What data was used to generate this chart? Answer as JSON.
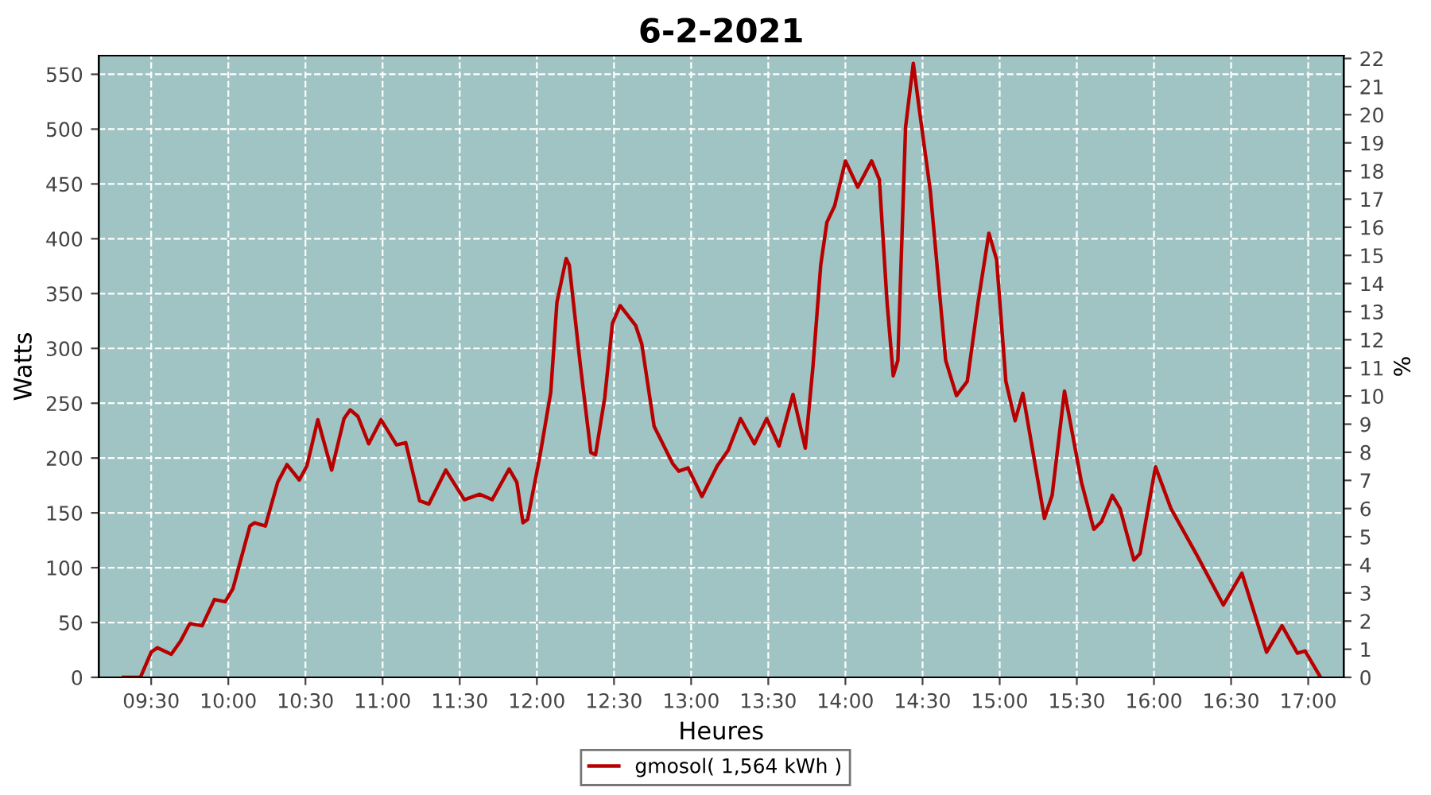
{
  "chart_data": {
    "type": "line",
    "title": "6-2-2021",
    "xlabel": "Heures",
    "ylabel": "Watts",
    "y2label": "%",
    "xlim": [
      9.16,
      17.23
    ],
    "xticks": [
      {
        "value": 9.5,
        "label": "09:30"
      },
      {
        "value": 10,
        "label": "10:00"
      },
      {
        "value": 10.5,
        "label": "10:30"
      },
      {
        "value": 11,
        "label": "11:00"
      },
      {
        "value": 11.5,
        "label": "11:30"
      },
      {
        "value": 12,
        "label": "12:00"
      },
      {
        "value": 12.5,
        "label": "12:30"
      },
      {
        "value": 13,
        "label": "13:00"
      },
      {
        "value": 13.5,
        "label": "13:30"
      },
      {
        "value": 14,
        "label": "14:00"
      },
      {
        "value": 14.5,
        "label": "14:30"
      },
      {
        "value": 15,
        "label": "15:00"
      },
      {
        "value": 15.5,
        "label": "15:30"
      },
      {
        "value": 16,
        "label": "16:00"
      },
      {
        "value": 16.5,
        "label": "16:30"
      },
      {
        "value": 17,
        "label": "17:00"
      }
    ],
    "ylim": [
      0,
      567
    ],
    "yticks": [
      0,
      50,
      100,
      150,
      200,
      250,
      300,
      350,
      400,
      450,
      500,
      550
    ],
    "y2lim": [
      0,
      22.1
    ],
    "y2ticks": [
      0,
      1,
      2,
      3,
      4,
      5,
      6,
      7,
      8,
      9,
      10,
      11,
      12,
      13,
      14,
      15,
      16,
      17,
      18,
      19,
      20,
      21,
      22
    ],
    "grid": true,
    "legend": "bottom",
    "marker": "none",
    "line_style": "solid",
    "series": [
      {
        "name": "gmosol( 1,564 kWh )",
        "color": "#b80000",
        "x": [
          9.32,
          9.43,
          9.5,
          9.54,
          9.63,
          9.69,
          9.75,
          9.83,
          9.91,
          9.98,
          10.03,
          10.14,
          10.17,
          10.24,
          10.32,
          10.38,
          10.46,
          10.51,
          10.58,
          10.67,
          10.75,
          10.79,
          10.84,
          10.91,
          10.99,
          11.09,
          11.15,
          11.24,
          11.3,
          11.41,
          11.53,
          11.63,
          11.71,
          11.82,
          11.87,
          11.91,
          11.94,
          12.02,
          12.09,
          12.13,
          12.19,
          12.21,
          12.28,
          12.35,
          12.38,
          12.44,
          12.49,
          12.54,
          12.64,
          12.68,
          12.76,
          12.88,
          12.92,
          12.98,
          13.07,
          13.17,
          13.24,
          13.32,
          13.41,
          13.49,
          13.57,
          13.66,
          13.74,
          13.79,
          13.84,
          13.88,
          13.93,
          14.0,
          14.08,
          14.17,
          14.22,
          14.27,
          14.31,
          14.34,
          14.39,
          14.44,
          14.48,
          14.55,
          14.65,
          14.72,
          14.79,
          14.86,
          14.93,
          14.98,
          15.04,
          15.1,
          15.15,
          15.22,
          15.29,
          15.34,
          15.42,
          15.53,
          15.61,
          15.66,
          15.73,
          15.78,
          15.87,
          15.91,
          16.01,
          16.11,
          16.28,
          16.45,
          16.57,
          16.73,
          16.83,
          16.93,
          16.98,
          17.08
        ],
        "values": [
          0,
          0,
          23,
          27,
          21,
          33,
          49,
          47,
          71,
          69,
          81,
          138,
          141,
          138,
          178,
          194,
          180,
          193,
          235,
          189,
          236,
          244,
          238,
          213,
          235,
          212,
          214,
          161,
          158,
          189,
          162,
          167,
          162,
          190,
          178,
          141,
          144,
          202,
          260,
          342,
          382,
          376,
          287,
          205,
          203,
          255,
          323,
          339,
          321,
          304,
          229,
          195,
          188,
          191,
          165,
          193,
          207,
          236,
          213,
          236,
          211,
          258,
          209,
          284,
          376,
          415,
          430,
          471,
          447,
          471,
          454,
          342,
          275,
          289,
          502,
          560,
          517,
          444,
          289,
          257,
          270,
          342,
          405,
          381,
          270,
          234,
          259,
          202,
          145,
          166,
          261,
          178,
          135,
          142,
          166,
          154,
          107,
          113,
          192,
          154,
          111,
          66,
          95,
          23,
          47,
          22,
          24,
          0
        ]
      }
    ]
  }
}
